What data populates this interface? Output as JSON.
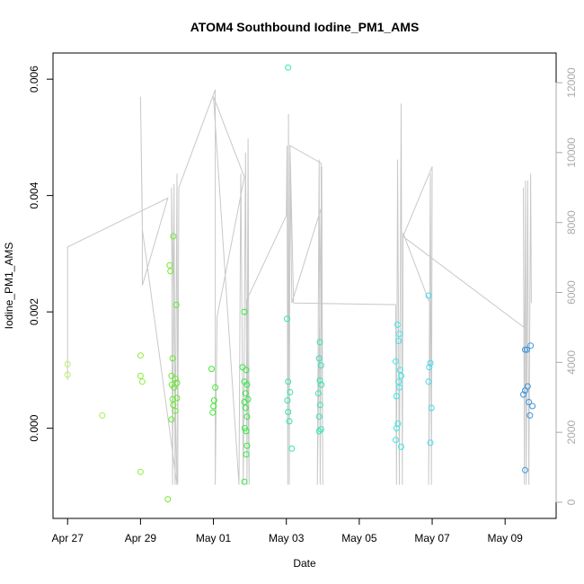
{
  "chart_data": {
    "type": "scatter",
    "title": "ATOM4 Southbound Iodine_PM1_AMS",
    "xlabel": "Date",
    "ylabel": "Iodine_PM1_AMS",
    "x_ticks": [
      "Apr 27",
      "Apr 29",
      "May 01",
      "May 03",
      "May 05",
      "May 07",
      "May 09"
    ],
    "y_ticks": [
      "0.000",
      "0.002",
      "0.004",
      "0.006"
    ],
    "y2_ticks": [
      "0",
      "2000",
      "4000",
      "6000",
      "8000",
      "10000",
      "12000"
    ],
    "xlim_days": [
      26.6,
      40.4
    ],
    "ylim": [
      -0.00155,
      0.00645
    ],
    "y2lim": [
      0,
      12000
    ],
    "colors": {
      "axis": "#000000",
      "secondary_axis": "#aaaaaa",
      "line": "#c8c8c8"
    },
    "points": [
      {
        "x": 27.0,
        "y": 0.0011,
        "color": "#b7f26a"
      },
      {
        "x": 27.0,
        "y": 0.00092,
        "color": "#b7f26a"
      },
      {
        "x": 27.95,
        "y": 0.00022,
        "color": "#a8f05a"
      },
      {
        "x": 29.0,
        "y": 0.00125,
        "color": "#88ee40"
      },
      {
        "x": 29.0,
        "y": 0.0009,
        "color": "#88ee40"
      },
      {
        "x": 29.05,
        "y": 0.0008,
        "color": "#88ee40"
      },
      {
        "x": 29.0,
        "y": -0.00075,
        "color": "#88ee40"
      },
      {
        "x": 29.75,
        "y": -0.00122,
        "color": "#6fec2e"
      },
      {
        "x": 29.8,
        "y": 0.0028,
        "color": "#6fec2e"
      },
      {
        "x": 29.82,
        "y": 0.0027,
        "color": "#6fec2e"
      },
      {
        "x": 29.9,
        "y": 0.0033,
        "color": "#6fec2e"
      },
      {
        "x": 29.88,
        "y": 0.0012,
        "color": "#66ec28"
      },
      {
        "x": 29.85,
        "y": 0.0009,
        "color": "#66ec28"
      },
      {
        "x": 29.86,
        "y": 0.00075,
        "color": "#66ec28"
      },
      {
        "x": 29.92,
        "y": 0.0007,
        "color": "#66ec28"
      },
      {
        "x": 29.96,
        "y": 0.00085,
        "color": "#66ec28"
      },
      {
        "x": 29.88,
        "y": 0.0005,
        "color": "#66ec28"
      },
      {
        "x": 29.9,
        "y": 0.0004,
        "color": "#66ec28"
      },
      {
        "x": 29.95,
        "y": 0.0003,
        "color": "#66ec28"
      },
      {
        "x": 29.85,
        "y": 0.00015,
        "color": "#66ec28"
      },
      {
        "x": 29.98,
        "y": 0.00212,
        "color": "#5feb24"
      },
      {
        "x": 30.0,
        "y": 0.00078,
        "color": "#5feb24"
      },
      {
        "x": 30.0,
        "y": 0.00052,
        "color": "#5feb24"
      },
      {
        "x": 30.95,
        "y": 0.00102,
        "color": "#40ea30"
      },
      {
        "x": 31.05,
        "y": 0.0007,
        "color": "#40ea30"
      },
      {
        "x": 31.02,
        "y": 0.00048,
        "color": "#40ea30"
      },
      {
        "x": 31.0,
        "y": 0.00038,
        "color": "#40ea30"
      },
      {
        "x": 30.98,
        "y": 0.00027,
        "color": "#40ea30"
      },
      {
        "x": 31.8,
        "y": 0.00105,
        "color": "#30ea3c"
      },
      {
        "x": 31.85,
        "y": 0.002,
        "color": "#30ea3c"
      },
      {
        "x": 31.9,
        "y": 0.001,
        "color": "#30ea3c"
      },
      {
        "x": 31.85,
        "y": 0.0008,
        "color": "#30ea3c"
      },
      {
        "x": 31.92,
        "y": 0.00075,
        "color": "#30ea3c"
      },
      {
        "x": 31.88,
        "y": 0.0006,
        "color": "#30ea3c"
      },
      {
        "x": 31.95,
        "y": 0.0005,
        "color": "#30ea3c"
      },
      {
        "x": 31.85,
        "y": 0.00045,
        "color": "#30ea3c"
      },
      {
        "x": 31.88,
        "y": 0.00035,
        "color": "#30ea3c"
      },
      {
        "x": 31.92,
        "y": 0.0002,
        "color": "#30ea3c"
      },
      {
        "x": 31.86,
        "y": 0.0,
        "color": "#30ea3c"
      },
      {
        "x": 31.9,
        "y": -5e-05,
        "color": "#30ea3c"
      },
      {
        "x": 31.92,
        "y": -0.0003,
        "color": "#30ea3c"
      },
      {
        "x": 31.9,
        "y": -0.00045,
        "color": "#30ea3c"
      },
      {
        "x": 31.85,
        "y": -0.00092,
        "color": "#30ea3c"
      },
      {
        "x": 33.05,
        "y": 0.0062,
        "color": "#30e8a4"
      },
      {
        "x": 33.02,
        "y": 0.00188,
        "color": "#30e8a4"
      },
      {
        "x": 33.05,
        "y": 0.0008,
        "color": "#30e8a4"
      },
      {
        "x": 33.1,
        "y": 0.00062,
        "color": "#30e8a4"
      },
      {
        "x": 33.03,
        "y": 0.00048,
        "color": "#30e8a4"
      },
      {
        "x": 33.05,
        "y": 0.00028,
        "color": "#30e8a4"
      },
      {
        "x": 33.08,
        "y": 0.00012,
        "color": "#30e8a4"
      },
      {
        "x": 33.15,
        "y": -0.00035,
        "color": "#30e8a4"
      },
      {
        "x": 33.92,
        "y": 0.00148,
        "color": "#30e6b8"
      },
      {
        "x": 33.9,
        "y": 0.0012,
        "color": "#30e6b8"
      },
      {
        "x": 33.95,
        "y": 0.00108,
        "color": "#30e6b8"
      },
      {
        "x": 33.92,
        "y": 0.00082,
        "color": "#30e6b8"
      },
      {
        "x": 33.96,
        "y": 0.00075,
        "color": "#30e6b8"
      },
      {
        "x": 33.88,
        "y": 0.0006,
        "color": "#30e6b8"
      },
      {
        "x": 33.93,
        "y": 0.0004,
        "color": "#30e6b8"
      },
      {
        "x": 33.9,
        "y": 0.0002,
        "color": "#30e6b8"
      },
      {
        "x": 33.95,
        "y": -2e-05,
        "color": "#30e6b8"
      },
      {
        "x": 33.9,
        "y": -5e-05,
        "color": "#30e6b8"
      },
      {
        "x": 36.05,
        "y": 0.00178,
        "color": "#3ee6e6"
      },
      {
        "x": 36.1,
        "y": 0.00162,
        "color": "#3ee6e6"
      },
      {
        "x": 36.08,
        "y": 0.0015,
        "color": "#3ee6e6"
      },
      {
        "x": 36.0,
        "y": 0.00115,
        "color": "#3ee6e6"
      },
      {
        "x": 36.12,
        "y": 0.001,
        "color": "#3ee6e6"
      },
      {
        "x": 36.15,
        "y": 0.0009,
        "color": "#3ee6e6"
      },
      {
        "x": 36.08,
        "y": 0.0008,
        "color": "#3ee6e6"
      },
      {
        "x": 36.1,
        "y": 0.0007,
        "color": "#3ee6e6"
      },
      {
        "x": 36.02,
        "y": 0.00055,
        "color": "#3ee6e6"
      },
      {
        "x": 36.06,
        "y": 8e-05,
        "color": "#3ee6e6"
      },
      {
        "x": 36.02,
        "y": 0.0,
        "color": "#3ee6e6"
      },
      {
        "x": 36.0,
        "y": -0.0002,
        "color": "#3ee6e6"
      },
      {
        "x": 36.15,
        "y": -0.00032,
        "color": "#3ee6e6"
      },
      {
        "x": 36.9,
        "y": 0.00228,
        "color": "#40dcf0"
      },
      {
        "x": 36.95,
        "y": 0.00112,
        "color": "#40dcf0"
      },
      {
        "x": 36.92,
        "y": 0.00105,
        "color": "#40dcf0"
      },
      {
        "x": 36.9,
        "y": 0.0008,
        "color": "#40dcf0"
      },
      {
        "x": 36.98,
        "y": 0.00035,
        "color": "#40dcf0"
      },
      {
        "x": 36.95,
        "y": -0.00025,
        "color": "#40dcf0"
      },
      {
        "x": 39.55,
        "y": 0.00135,
        "color": "#3a96e0"
      },
      {
        "x": 39.6,
        "y": 0.00135,
        "color": "#3a96e0"
      },
      {
        "x": 39.7,
        "y": 0.00142,
        "color": "#3a96e0"
      },
      {
        "x": 39.62,
        "y": 0.00072,
        "color": "#3a96e0"
      },
      {
        "x": 39.55,
        "y": 0.00065,
        "color": "#3a96e0"
      },
      {
        "x": 39.5,
        "y": 0.00058,
        "color": "#3a96e0"
      },
      {
        "x": 39.65,
        "y": 0.00045,
        "color": "#3a96e0"
      },
      {
        "x": 39.75,
        "y": 0.00038,
        "color": "#3a96e0"
      },
      {
        "x": 39.68,
        "y": 0.00022,
        "color": "#3a96e0"
      },
      {
        "x": 39.55,
        "y": -0.00072,
        "color": "#3a96e0"
      }
    ],
    "secondary_line": [
      [
        27.0,
        3500
      ],
      [
        27.0,
        7300
      ],
      [
        29.75,
        8700
      ],
      [
        29.05,
        6200
      ],
      [
        29.05,
        8100
      ],
      [
        29.0,
        11600
      ],
      [
        29.05,
        7800
      ],
      [
        30.0,
        500
      ],
      [
        29.85,
        9000
      ],
      [
        29.88,
        500
      ],
      [
        29.92,
        9100
      ],
      [
        29.95,
        500
      ],
      [
        30.0,
        9400
      ],
      [
        30.02,
        500
      ],
      [
        30.05,
        9000
      ],
      [
        31.05,
        11800
      ],
      [
        31.05,
        500
      ],
      [
        31.1,
        5300
      ],
      [
        31.85,
        9300
      ],
      [
        31.0,
        11600
      ],
      [
        31.7,
        500
      ],
      [
        31.75,
        9400
      ],
      [
        31.82,
        500
      ],
      [
        31.88,
        10000
      ],
      [
        31.92,
        500
      ],
      [
        31.95,
        10400
      ],
      [
        31.98,
        500
      ],
      [
        31.92,
        5800
      ],
      [
        33.0,
        8200
      ],
      [
        33.02,
        10200
      ],
      [
        33.04,
        500
      ],
      [
        33.06,
        11100
      ],
      [
        33.08,
        500
      ],
      [
        33.1,
        10000
      ],
      [
        33.15,
        5700
      ],
      [
        33.95,
        8400
      ],
      [
        33.85,
        500
      ],
      [
        33.9,
        9800
      ],
      [
        33.93,
        500
      ],
      [
        33.97,
        9600
      ],
      [
        34.0,
        500
      ],
      [
        33.95,
        9700
      ],
      [
        33.1,
        10200
      ],
      [
        33.2,
        5700
      ],
      [
        36.0,
        5650
      ],
      [
        36.02,
        500
      ],
      [
        36.05,
        9800
      ],
      [
        36.1,
        500
      ],
      [
        36.15,
        11400
      ],
      [
        36.18,
        500
      ],
      [
        36.2,
        7700
      ],
      [
        36.95,
        5650
      ],
      [
        36.9,
        500
      ],
      [
        36.95,
        9400
      ],
      [
        36.98,
        500
      ],
      [
        37.0,
        9600
      ],
      [
        36.2,
        7600
      ],
      [
        39.52,
        5000
      ],
      [
        39.5,
        9000
      ],
      [
        39.53,
        500
      ],
      [
        39.56,
        9200
      ],
      [
        39.58,
        500
      ],
      [
        39.62,
        9200
      ],
      [
        39.65,
        500
      ],
      [
        39.7,
        9400
      ],
      [
        39.72,
        5700
      ]
    ]
  }
}
